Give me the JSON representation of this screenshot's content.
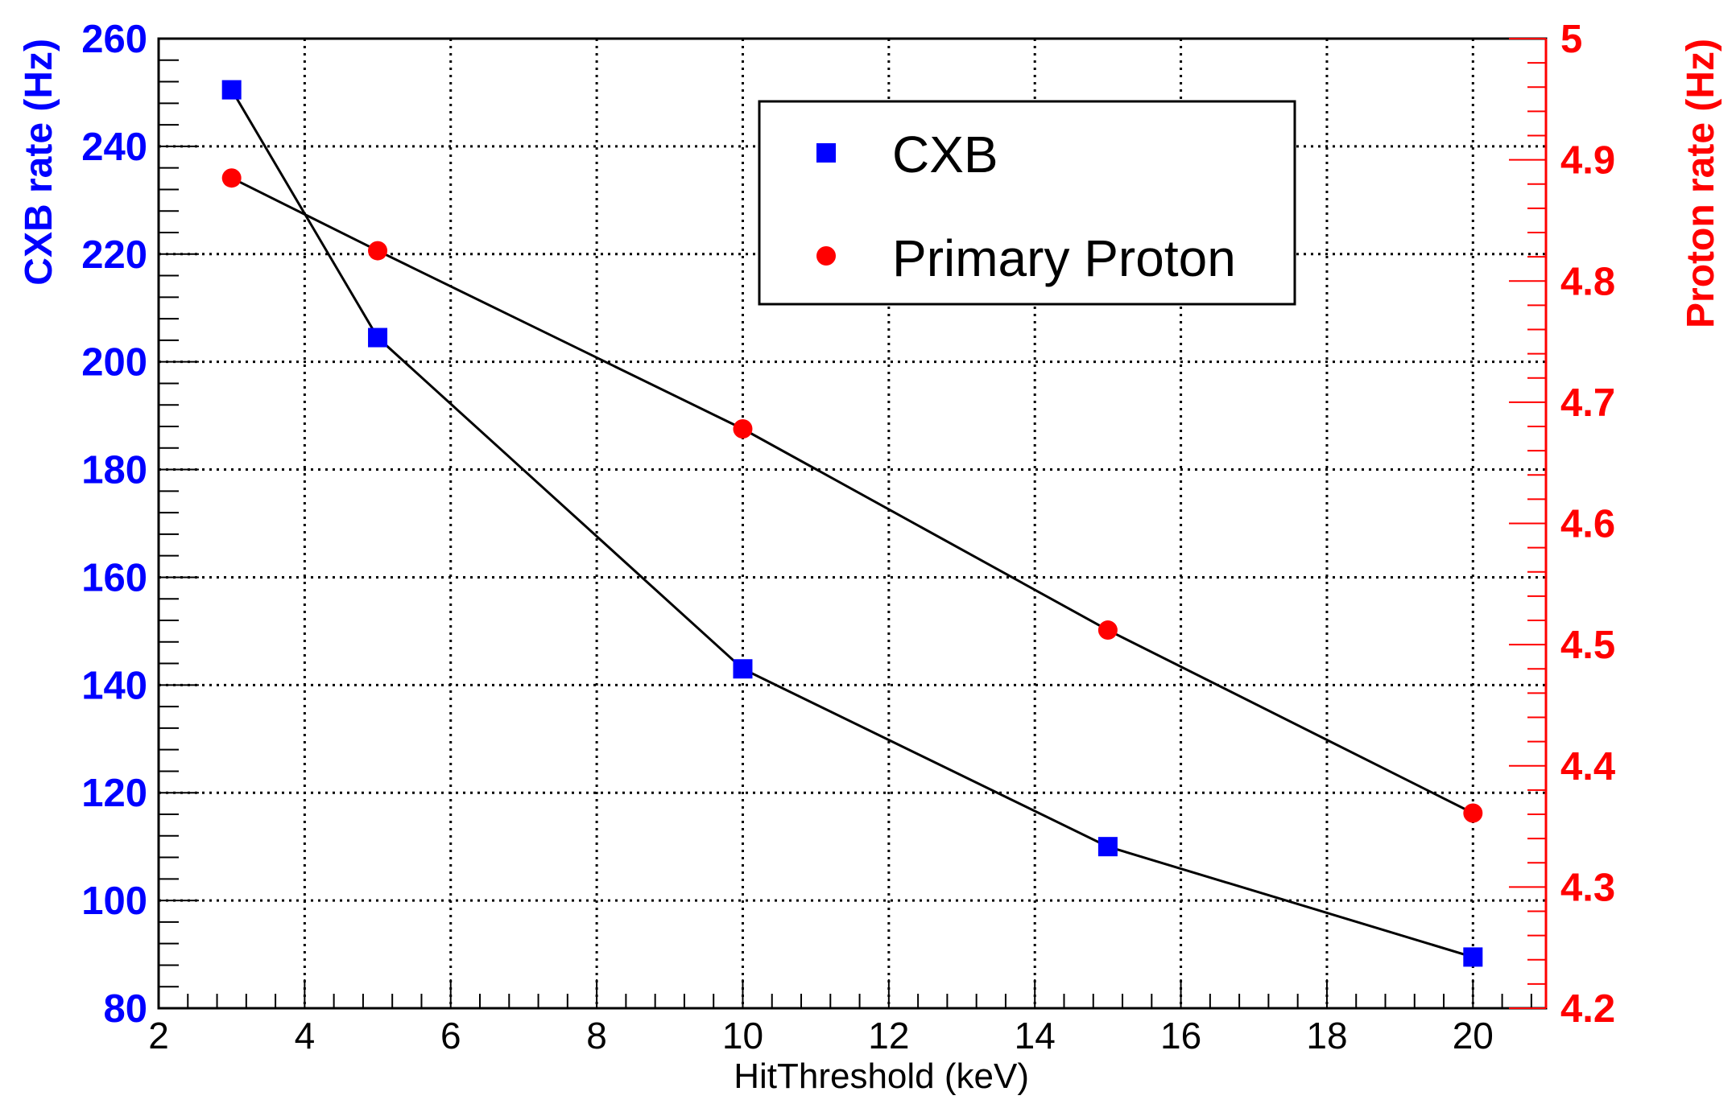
{
  "chart_data": {
    "type": "scatter",
    "x": [
      3,
      5,
      10,
      15,
      20
    ],
    "xlabel": "HitThreshold (keV)",
    "xlim": [
      2,
      21
    ],
    "xticks": [
      2,
      4,
      6,
      8,
      10,
      12,
      14,
      16,
      18,
      20
    ],
    "grid": true,
    "series": [
      {
        "name": "CXB",
        "axis": "left",
        "marker": "square",
        "color": "#0000FF",
        "values": [
          250.5,
          204.5,
          143,
          110,
          89.5
        ]
      },
      {
        "name": "Primary Proton",
        "axis": "right",
        "marker": "circle",
        "color": "#FF0000",
        "values": [
          4.885,
          4.825,
          4.678,
          4.512,
          4.361
        ]
      }
    ],
    "y_left": {
      "label": "CXB rate (Hz)",
      "color": "#0000FF",
      "lim": [
        80,
        260
      ],
      "ticks": [
        "80",
        "100",
        "120",
        "140",
        "160",
        "180",
        "200",
        "220",
        "240",
        "260"
      ]
    },
    "y_right": {
      "label": "Proton rate (Hz)",
      "color": "#FF0000",
      "lim": [
        4.2,
        5
      ],
      "ticks": [
        "4.2",
        "4.3",
        "4.4",
        "4.5",
        "4.6",
        "4.7",
        "4.8",
        "4.9",
        "5"
      ]
    },
    "legend": {
      "placement": "top-center",
      "entries": [
        "CXB",
        "Primary Proton"
      ]
    }
  }
}
